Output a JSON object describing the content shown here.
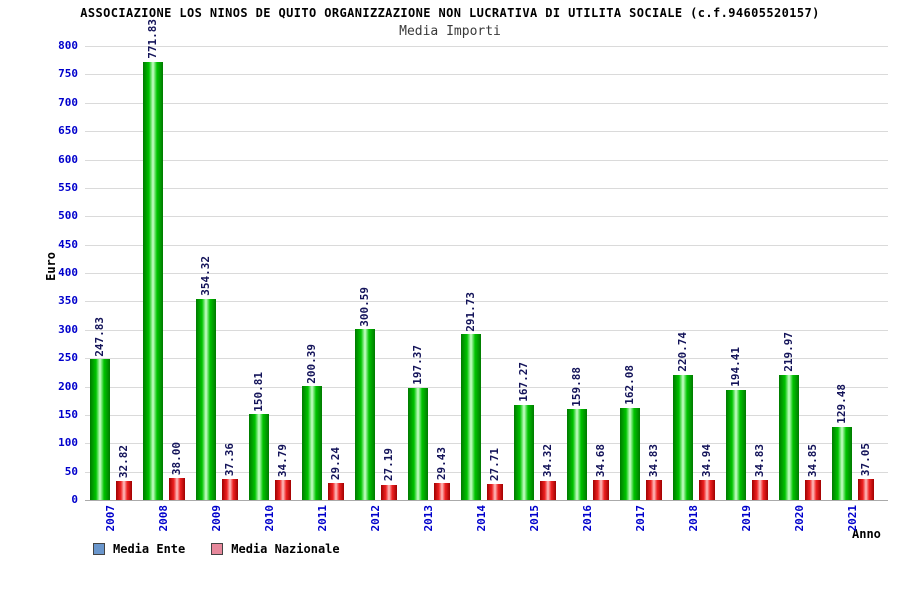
{
  "chart_data": {
    "type": "bar",
    "title": "ASSOCIAZIONE LOS NINOS DE QUITO ORGANIZZAZIONE NON LUCRATIVA DI UTILITA SOCIALE (c.f.94605520157)",
    "subtitle": "Media Importi",
    "xlabel": "Anno",
    "ylabel": "Euro",
    "ylim": [
      0,
      800
    ],
    "ytick_step": 50,
    "grid": true,
    "legend_position": "bottom-left",
    "categories": [
      "2007",
      "2008",
      "2009",
      "2010",
      "2011",
      "2012",
      "2013",
      "2014",
      "2015",
      "2016",
      "2017",
      "2018",
      "2019",
      "2020",
      "2021"
    ],
    "series": [
      {
        "name": "Media Ente",
        "legend_color": "#6a96cc",
        "color_dark": "#007a00",
        "color_mid": "#00c400",
        "color_light": "#c9ffc9",
        "values": [
          247.83,
          771.83,
          354.32,
          150.81,
          200.39,
          300.59,
          197.37,
          291.73,
          167.27,
          159.88,
          162.08,
          220.74,
          194.41,
          219.97,
          129.48
        ]
      },
      {
        "name": "Media Nazionale",
        "legend_color": "#e6889b",
        "color_dark": "#a00000",
        "color_mid": "#ee2222",
        "color_light": "#ffc0c0",
        "values": [
          32.82,
          38.0,
          37.36,
          34.79,
          29.24,
          27.19,
          29.43,
          27.71,
          34.32,
          34.68,
          34.83,
          34.94,
          34.83,
          34.85,
          37.05
        ]
      }
    ]
  }
}
